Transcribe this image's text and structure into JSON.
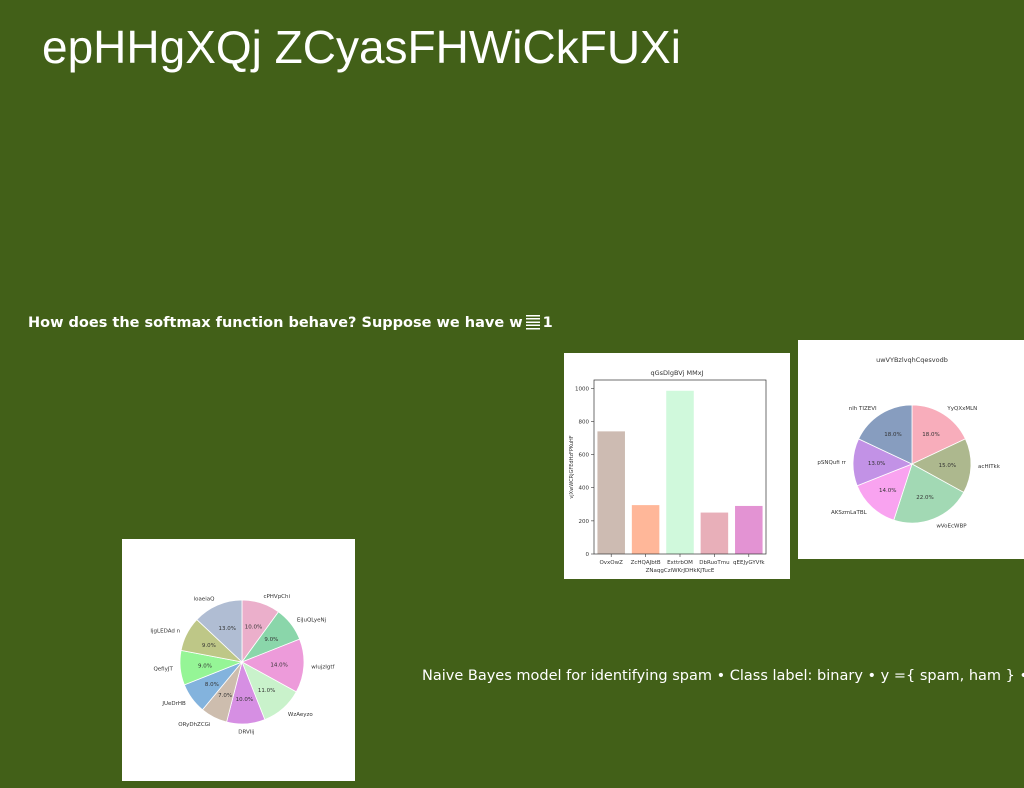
{
  "slide": {
    "title": "epHHgXQj ZCyasFHWiCkFUXi",
    "question_text": "How does the softmax function behave? Suppose we have w",
    "question_suffix": "1",
    "note": "Naive Bayes model for identifying spam • Class label: binary • y ={ spam, ham } •"
  },
  "chart_data": [
    {
      "type": "bar",
      "title": "qGsDlgBVj MMxJ",
      "xlabel": "ZNaqgCzlWKrJDHkKJTucE",
      "ylabel": "vjXwWCRjGFEdHzFPKuHF",
      "categories": [
        "OvxOwZ",
        "ZcHQAJbtB",
        "ExttrbOM",
        "DbRuoTmu",
        "qEEJyGYVfk"
      ],
      "values": [
        740,
        295,
        985,
        250,
        290
      ],
      "ylim": [
        0,
        1050
      ],
      "yticks": [
        0,
        200,
        400,
        600,
        800,
        1000
      ],
      "colors": [
        "#cdbbb2",
        "#ffb799",
        "#d0f9dc",
        "#e8afb9",
        "#e393d3"
      ]
    },
    {
      "type": "pie",
      "title": "uwVYBzlvqhCqesvodb",
      "labels": [
        "YyQXxMLN",
        "acHITkk",
        "wVoEcWBP",
        "AKSzmLaTBL",
        "pSNQufi rr",
        "nlh TIZEVI"
      ],
      "values": [
        18.0,
        15.0,
        22.0,
        14.0,
        13.0,
        18.0
      ],
      "value_labels": [
        "18.0%",
        "15.0%",
        "22.0%",
        "14.0%",
        "13.0%",
        "18.0%"
      ],
      "colors": [
        "#f8adbb",
        "#adb88e",
        "#a2d9b4",
        "#f9a3f0",
        "#c292e6",
        "#879dbf"
      ]
    },
    {
      "type": "pie",
      "title": "",
      "labels": [
        "cPHVpChi",
        "EiJuQLyeNj",
        "wlujzIgtf",
        "WzAeyzo",
        "DRVIij",
        "ORyDhZCGi",
        "JUeDrHB",
        "QefiyJT",
        "IjgLEDAd n",
        "loaeiaQ"
      ],
      "values": [
        10.0,
        9.0,
        14.0,
        11.0,
        10.0,
        7.0,
        8.0,
        9.0,
        9.0,
        13.0
      ],
      "value_labels": [
        "10.0%",
        "9.0%",
        "14.0%",
        "11.0%",
        "10.0%",
        "7.0%",
        "8.0%",
        "9.0%",
        "9.0%",
        "13.0%"
      ],
      "colors": [
        "#ebafcb",
        "#8ad6aa",
        "#ed9bda",
        "#c9f2cb",
        "#d68fe3",
        "#cdbdae",
        "#83b3dd",
        "#95f596",
        "#bec787",
        "#b0bdd3"
      ]
    }
  ]
}
